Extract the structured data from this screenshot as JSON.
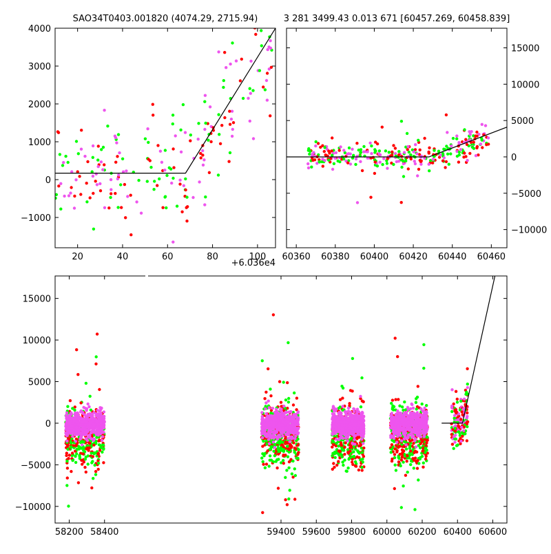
{
  "titles": {
    "left": "SAO34T0403.001820 (4074.29, 2715.94)",
    "right": "3 281 3499.43 0.013 671 [60457.269, 60458.839]"
  },
  "offset_label": "+6.036e4",
  "colors": {
    "green": "#00ff00",
    "red": "#ff0000",
    "magenta": "#ee55ee",
    "line": "#000000"
  },
  "chart_data": [
    {
      "id": "zoom-left",
      "type": "scatter",
      "xlim": [
        10,
        108
      ],
      "ylim": [
        -1800,
        4000
      ],
      "xticks": [
        20,
        40,
        60,
        80,
        100
      ],
      "yticks": [
        -1000,
        0,
        1000,
        2000,
        3000,
        4000
      ],
      "x_offset": 60360,
      "fit_line": [
        [
          10,
          170
        ],
        [
          68,
          170
        ],
        [
          108,
          4000
        ]
      ]
    },
    {
      "id": "zoom-right",
      "type": "scatter",
      "xlim": [
        60355,
        60468
      ],
      "ylim": [
        -12500,
        17700
      ],
      "xticks": [
        60360,
        60380,
        60400,
        60420,
        60440,
        60460
      ],
      "yticks": [
        -10000,
        -5000,
        0,
        5000,
        10000,
        15000
      ],
      "fit_line": [
        [
          60355,
          0
        ],
        [
          60428,
          0
        ],
        [
          60468,
          4100
        ]
      ]
    },
    {
      "id": "full",
      "type": "scatter",
      "xlim": [
        58120,
        60680
      ],
      "ylim": [
        -12000,
        17700
      ],
      "xticks": [
        58200,
        58400,
        59400,
        59600,
        59800,
        60000,
        60200,
        60400,
        60600
      ],
      "yticks": [
        -10000,
        -5000,
        0,
        5000,
        10000,
        15000
      ],
      "fit_line": [
        [
          60310,
          0
        ],
        [
          60428,
          0
        ],
        [
          60612,
          17700
        ]
      ]
    }
  ]
}
